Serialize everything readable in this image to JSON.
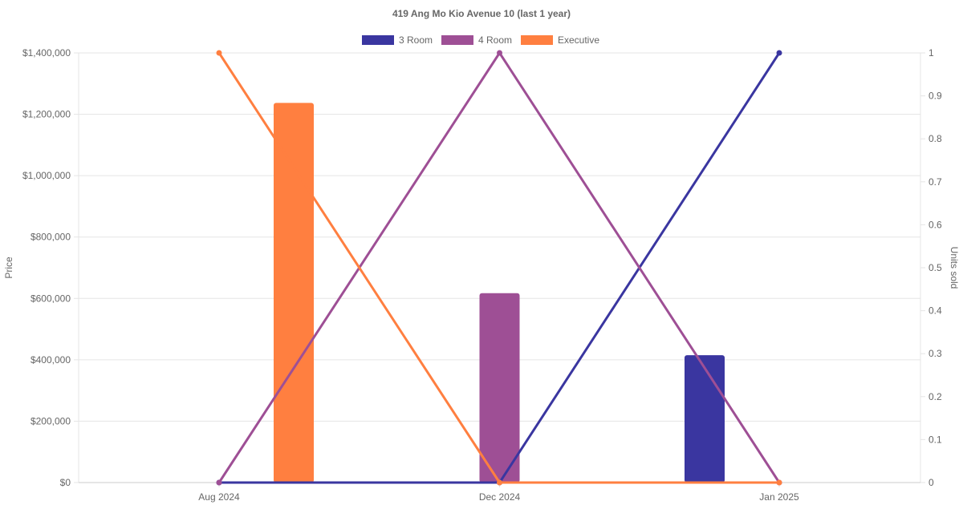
{
  "chart_data": {
    "type": "bar+line",
    "title": "419 Ang Mo Kio Avenue 10 (last 1 year)",
    "categories": [
      "Aug 2024",
      "Dec 2024",
      "Jan 2025"
    ],
    "y_left": {
      "label": "Price",
      "min": 0,
      "max": 1400000,
      "ticks": [
        0,
        200000,
        400000,
        600000,
        800000,
        1000000,
        1200000,
        1400000
      ],
      "tick_labels": [
        "$0",
        "$200,000",
        "$400,000",
        "$600,000",
        "$800,000",
        "$1,000,000",
        "$1,200,000",
        "$1,400,000"
      ]
    },
    "y_right": {
      "label": "Units sold",
      "min": 0,
      "max": 1,
      "ticks": [
        0,
        0.1,
        0.2,
        0.3,
        0.4,
        0.5,
        0.6,
        0.7,
        0.8,
        0.9,
        1
      ],
      "tick_labels": [
        "0",
        "0.1",
        "0.2",
        "0.3",
        "0.4",
        "0.5",
        "0.6",
        "0.7",
        "0.8",
        "0.9",
        "1"
      ]
    },
    "grid": true,
    "legend_position": "top-center",
    "series": [
      {
        "name": "3 Room",
        "color": "#3a36a0",
        "price": [
          0,
          0,
          415000
        ],
        "units": [
          0,
          0,
          1
        ]
      },
      {
        "name": "4 Room",
        "color": "#9e4f95",
        "price": [
          0,
          617000,
          0
        ],
        "units": [
          0,
          1,
          0
        ]
      },
      {
        "name": "Executive",
        "color": "#ff7f40",
        "price": [
          1237000,
          0,
          0
        ],
        "units": [
          1,
          0,
          0
        ]
      }
    ]
  }
}
